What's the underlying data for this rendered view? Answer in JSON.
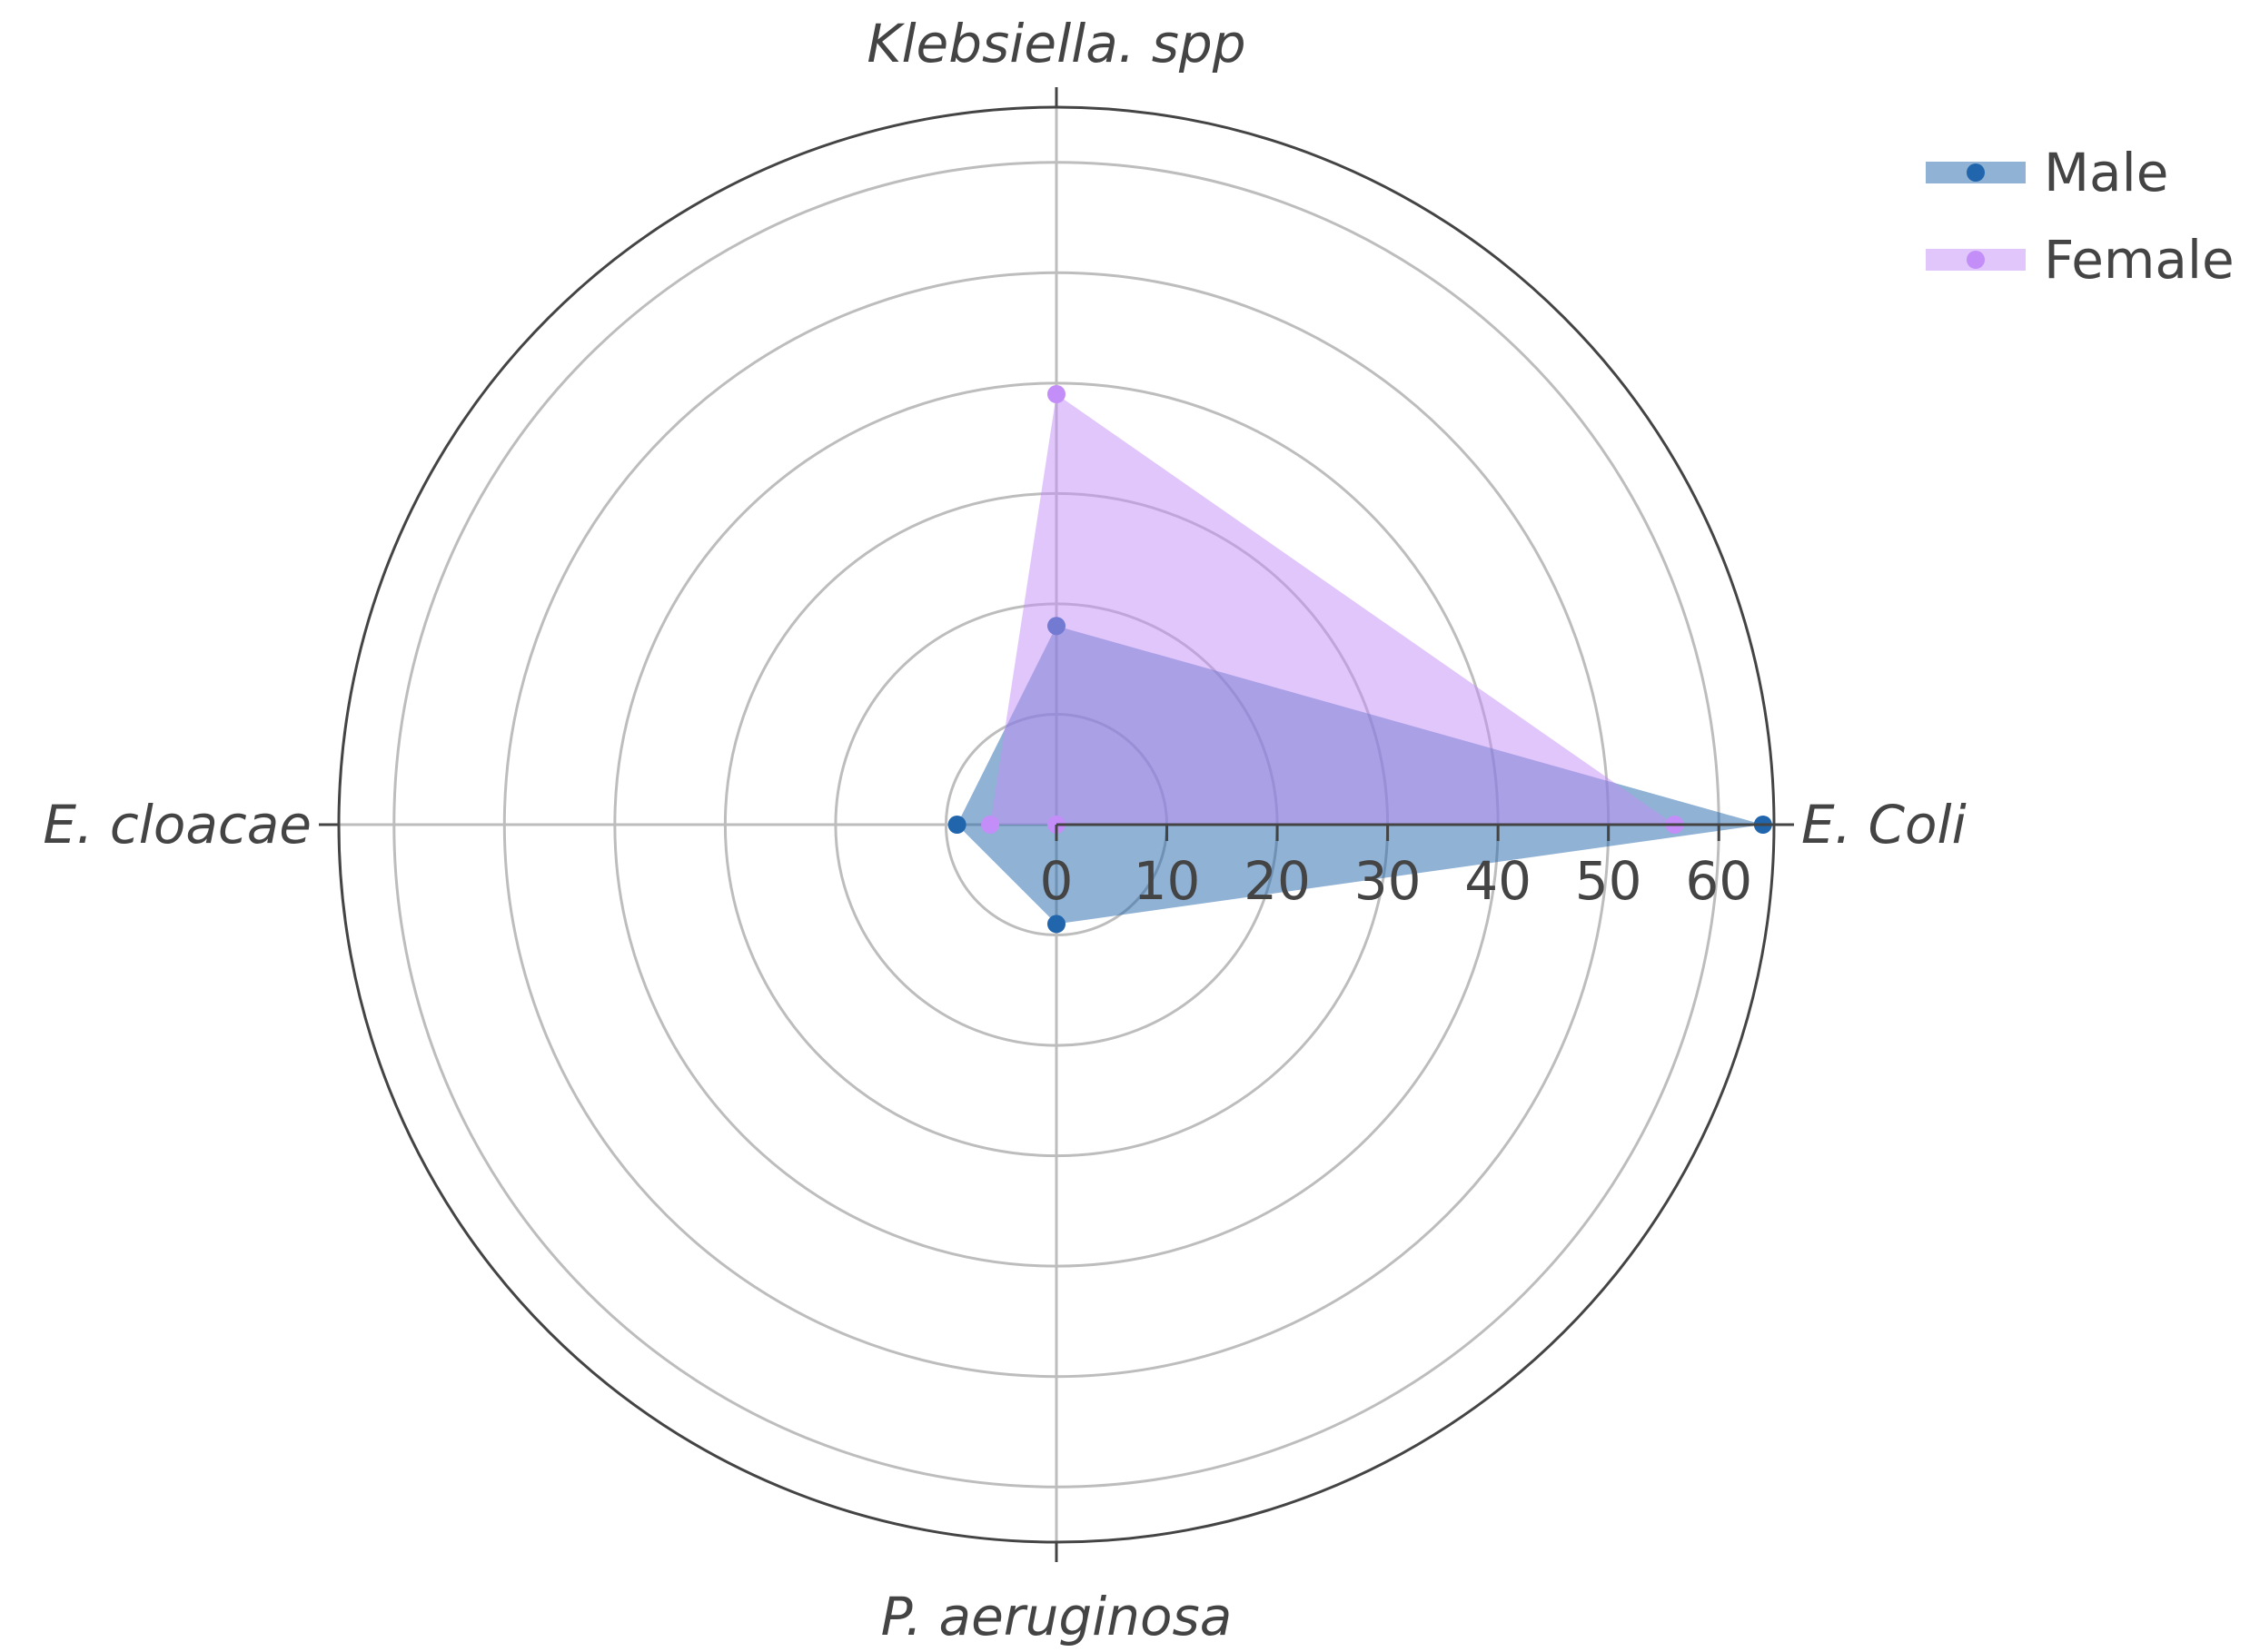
{
  "chart_data": {
    "type": "radar",
    "categories": [
      "E. Coli",
      "Klebsiella. spp",
      "E. cloacae",
      "P. aeruginosa"
    ],
    "series": [
      {
        "name": "Male",
        "values": [
          64,
          18,
          9,
          9
        ],
        "color": "#2166ac"
      },
      {
        "name": "Female",
        "values": [
          56,
          39,
          6,
          0
        ],
        "color": "#c38ef7"
      }
    ],
    "radial_ticks": [
      "0",
      "10",
      "20",
      "30",
      "40",
      "50",
      "60"
    ],
    "radial_range": [
      0,
      65
    ],
    "grid": true,
    "legend_position": "top-right"
  }
}
